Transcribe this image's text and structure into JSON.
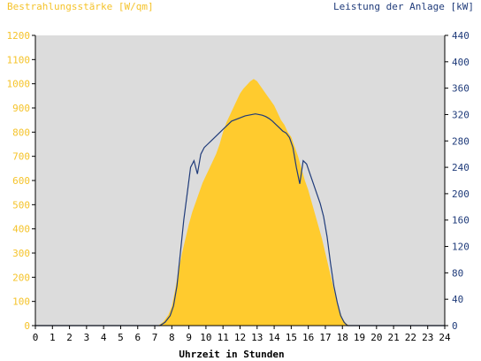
{
  "window": {
    "title": ""
  },
  "chart_data": {
    "type": "area",
    "title_left": "Bestrahlungsstärke [W/qm]",
    "title_right": "Leistung der Anlage [kW]",
    "xlabel": "Uhrzeit in Stunden",
    "x_ticks": [
      "0",
      "1",
      "2",
      "3",
      "4",
      "5",
      "6",
      "7",
      "8",
      "9",
      "10",
      "11",
      "12",
      "13",
      "14",
      "15",
      "16",
      "17",
      "18",
      "19",
      "20",
      "21",
      "22",
      "23",
      "24"
    ],
    "xlim": [
      0,
      24
    ],
    "y_left": {
      "ylim": [
        0,
        1200
      ],
      "ticks": [
        "0",
        "100",
        "200",
        "300",
        "400",
        "500",
        "600",
        "700",
        "800",
        "900",
        "1000",
        "1100",
        "1200"
      ],
      "color": "#f5c32a"
    },
    "y_right": {
      "ylim": [
        0,
        440
      ],
      "ticks": [
        "0",
        "40",
        "80",
        "120",
        "160",
        "200",
        "240",
        "280",
        "320",
        "360",
        "400",
        "440"
      ],
      "color": "#1f3b7a"
    },
    "grid": false,
    "plot_background": "#dcdcdc",
    "series": [
      {
        "name": "Bestrahlungsstärke [W/qm]",
        "axis": "left",
        "style": "area",
        "color": "#ffcb2e",
        "x": [
          0,
          7.2,
          7.5,
          7.8,
          8.0,
          8.2,
          8.4,
          8.6,
          8.8,
          9.0,
          9.2,
          9.4,
          9.6,
          9.8,
          10.0,
          10.2,
          10.4,
          10.6,
          10.8,
          11.0,
          11.2,
          11.4,
          11.6,
          11.8,
          12.0,
          12.2,
          12.4,
          12.6,
          12.8,
          13.0,
          13.2,
          13.4,
          13.6,
          13.8,
          14.0,
          14.2,
          14.4,
          14.6,
          14.8,
          15.0,
          15.2,
          15.4,
          15.6,
          15.8,
          16.0,
          16.2,
          16.4,
          16.6,
          16.8,
          17.0,
          17.2,
          17.4,
          17.6,
          17.8,
          18.0,
          18.2,
          18.4,
          24
        ],
        "values": [
          0,
          0,
          15,
          45,
          80,
          150,
          230,
          300,
          360,
          420,
          470,
          510,
          550,
          590,
          620,
          650,
          680,
          710,
          750,
          800,
          840,
          870,
          900,
          930,
          960,
          980,
          995,
          1010,
          1020,
          1010,
          990,
          970,
          950,
          930,
          910,
          880,
          850,
          830,
          800,
          780,
          740,
          700,
          650,
          600,
          560,
          510,
          460,
          410,
          360,
          300,
          240,
          180,
          120,
          70,
          30,
          10,
          0,
          0
        ]
      },
      {
        "name": "Leistung der Anlage [kW]",
        "axis": "right",
        "style": "line",
        "color": "#1f3b7a",
        "x": [
          0,
          7.3,
          7.6,
          7.9,
          8.1,
          8.3,
          8.5,
          8.7,
          8.9,
          9.1,
          9.3,
          9.5,
          9.7,
          9.9,
          10.1,
          10.3,
          10.5,
          10.7,
          10.9,
          11.1,
          11.3,
          11.5,
          11.7,
          11.9,
          12.1,
          12.3,
          12.5,
          12.7,
          12.9,
          13.1,
          13.3,
          13.5,
          13.7,
          13.9,
          14.1,
          14.3,
          14.5,
          14.7,
          14.9,
          15.1,
          15.3,
          15.5,
          15.7,
          15.9,
          16.1,
          16.3,
          16.5,
          16.7,
          16.9,
          17.1,
          17.3,
          17.5,
          17.7,
          17.9,
          18.1,
          18.3,
          24
        ],
        "values": [
          0,
          0,
          5,
          15,
          30,
          60,
          110,
          160,
          200,
          240,
          250,
          230,
          260,
          270,
          275,
          280,
          285,
          290,
          295,
          300,
          305,
          310,
          312,
          314,
          316,
          318,
          319,
          320,
          321,
          320,
          319,
          317,
          314,
          310,
          305,
          300,
          295,
          292,
          285,
          270,
          240,
          215,
          250,
          245,
          230,
          215,
          200,
          185,
          165,
          135,
          95,
          60,
          35,
          15,
          5,
          0,
          0
        ]
      }
    ]
  }
}
